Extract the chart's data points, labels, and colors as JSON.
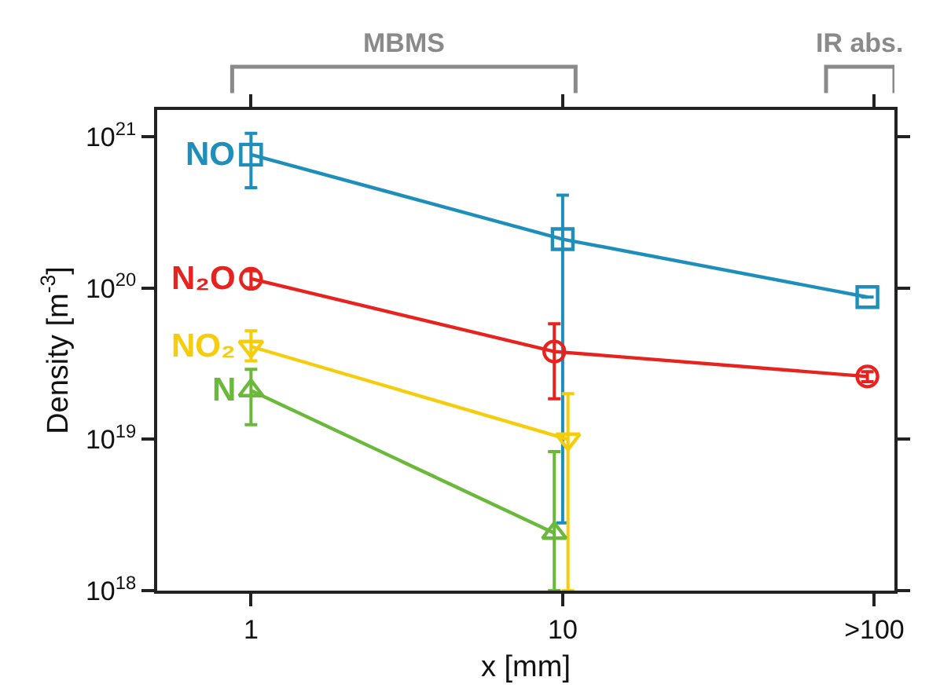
{
  "chart_data": {
    "type": "line",
    "xlabel": "x [mm]",
    "ylabel": "Density [m$^{-3}$]",
    "log": "xy",
    "xlim": [
      0.5,
      116
    ],
    "ylim": [
      1e+18,
      1.5e+21
    ],
    "xticks": [
      1,
      10,
      {
        "value": 100,
        "label": ">100"
      }
    ],
    "yticks": [
      {
        "value": 1e+18,
        "label": "10$^{18}$"
      },
      {
        "value": 1e+19,
        "label": "10$^{19}$"
      },
      {
        "value": 1e+20,
        "label": "10$^{20}$"
      },
      {
        "value": 1e+21,
        "label": "10$^{21}$"
      }
    ],
    "grid": false,
    "legend": false,
    "line_style": "solid",
    "annotations": [
      "MBMS",
      "IR abs."
    ],
    "series": [
      {
        "name": "NO",
        "color": "#1e8fba",
        "marker": "square",
        "x": [
          1,
          10,
          95
        ],
        "values": [
          7.6e+20,
          2.1e+20,
          8.7e+19
        ],
        "errors": [
          [
            4.6e+20,
            1.05e+21
          ],
          [
            2.8e+18,
            4.1e+20
          ],
          null
        ]
      },
      {
        "name": "N₂O",
        "color": "#e8231f",
        "marker": "circle",
        "x": [
          1,
          9.4,
          95
        ],
        "values": [
          1.15e+20,
          3.8e+19,
          2.6e+19
        ],
        "errors": [
          [
            1e+20,
            1.3e+20
          ],
          [
            1.85e+19,
            5.8e+19
          ],
          [
            2.4e+19,
            2.8e+19
          ]
        ]
      },
      {
        "name": "NO₂",
        "color": "#f5cd0a",
        "marker": "triangle-down",
        "x": [
          1,
          10.4
        ],
        "values": [
          4.1e+19,
          1e+19
        ],
        "errors": [
          [
            3.3e+19,
            5.2e+19
          ],
          [
            1e+18,
            2e+19
          ]
        ]
      },
      {
        "name": "N",
        "color": "#6ab93a",
        "marker": "triangle",
        "x": [
          1,
          9.4
        ],
        "values": [
          2.1e+19,
          2.4e+18
        ],
        "errors": [
          [
            1.25e+19,
            2.9e+19
          ],
          [
            1e+18,
            8.3e+18
          ]
        ]
      }
    ]
  }
}
